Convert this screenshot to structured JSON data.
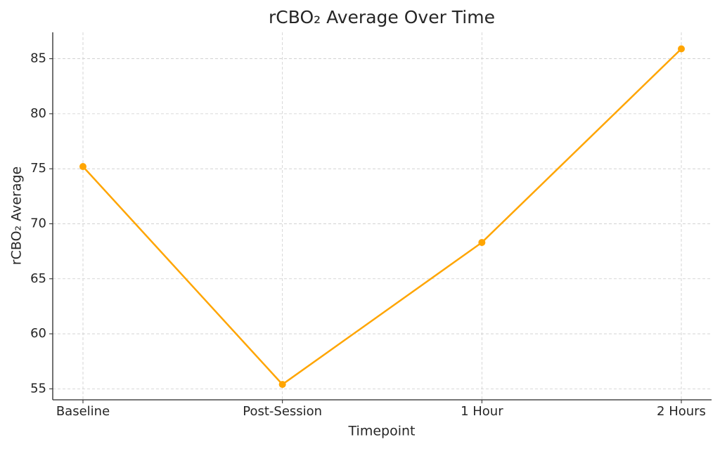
{
  "chart_data": {
    "type": "line",
    "title": "rCBO₂ Average Over Time",
    "x_label": "Timepoint",
    "y_label": "rCBO₂ Average",
    "categories": [
      "Baseline",
      "Post-Session",
      "1 Hour",
      "2 Hours"
    ],
    "values": [
      75.2,
      55.4,
      68.3,
      85.9
    ],
    "color": "#FFA500",
    "ylim": [
      54,
      87.4
    ],
    "yticks": [
      55,
      60,
      65,
      70,
      75,
      80,
      85
    ],
    "grid": true
  }
}
